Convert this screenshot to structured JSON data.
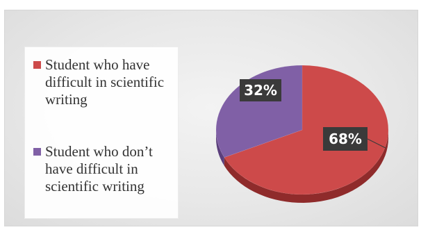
{
  "colors": {
    "slice_0": "#cd4a4a",
    "slice_0_side": "#8f2b2b",
    "slice_1": "#8060a6",
    "slice_1_side": "#5b3f7c",
    "label_bg": "#3a3a3a"
  },
  "chart_data": {
    "type": "pie",
    "style": "3d",
    "categories": [
      "Student who have difficult in scientific writing",
      "Student who don’t have difficult in scientific writing"
    ],
    "values": [
      68,
      32
    ],
    "data_labels": [
      "68%",
      "32%"
    ],
    "legend_position": "left"
  }
}
